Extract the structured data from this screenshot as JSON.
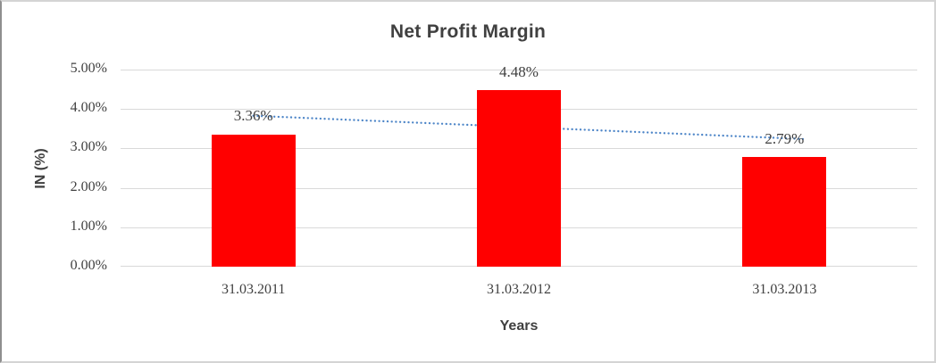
{
  "title": "Net Profit Margin",
  "colors": {
    "bar": "#ff0000",
    "trendline": "#4e86c8",
    "gridline": "#d9d9d9",
    "text": "#404040"
  },
  "chart_data": {
    "type": "bar",
    "title": "Net Profit Margin",
    "categories": [
      "31.03.2011",
      "31.03.2012",
      "31.03.2013"
    ],
    "series": [
      {
        "name": "Net Profit Margin",
        "values": [
          3.36,
          4.48,
          2.79
        ]
      }
    ],
    "data_labels": [
      "3.36%",
      "4.48%",
      "2.79%"
    ],
    "xlabel": "Years",
    "ylabel": "IN (%)",
    "ylim": [
      0,
      5
    ],
    "ytick_step": 1,
    "ytick_labels": [
      "0.00%",
      "1.00%",
      "2.00%",
      "3.00%",
      "4.00%",
      "5.00%"
    ],
    "grid": true,
    "legend": "none",
    "trendline": {
      "type": "linear",
      "style": "dotted",
      "series": "Net Profit Margin"
    }
  }
}
